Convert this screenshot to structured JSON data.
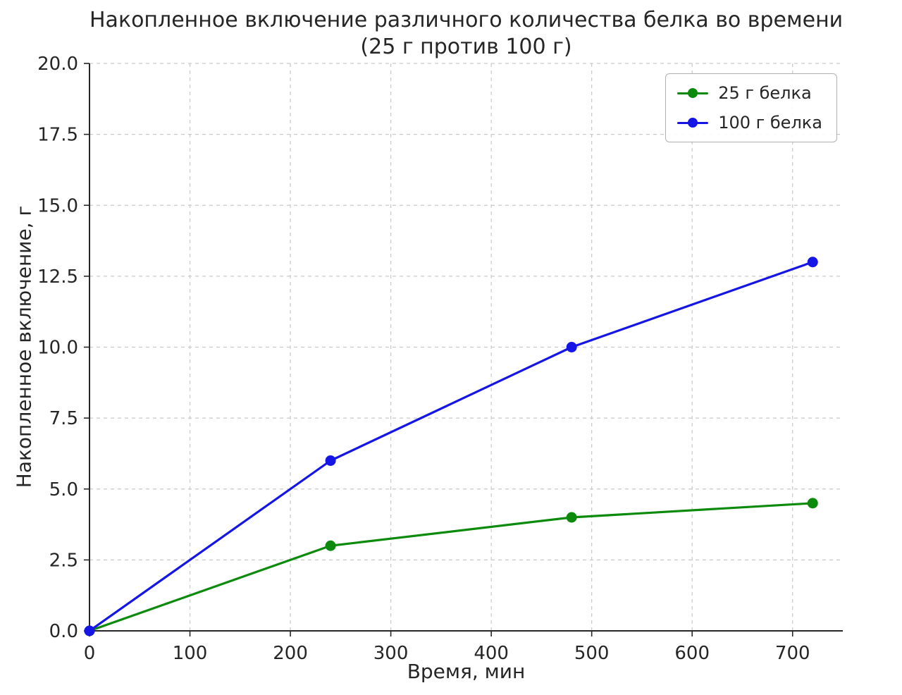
{
  "figure": {
    "title_line1": "Накопленное включение различного количества белка во времени",
    "title_line2": "(25 г против 100 г)"
  },
  "chart_data": {
    "type": "line",
    "title": "Накопленное включение различного количества белка во времени (25 г против 100 г)",
    "xlabel": "Время, мин",
    "ylabel": "Накопленное включение, г",
    "x": [
      0,
      240,
      480,
      720
    ],
    "series": [
      {
        "name": "25 г белка",
        "color": "#0b8a0b",
        "values": [
          0,
          3,
          4,
          4.5
        ]
      },
      {
        "name": "100 г белка",
        "color": "#1515e6",
        "values": [
          0,
          6,
          10,
          13
        ]
      }
    ],
    "xticks": [
      0,
      100,
      200,
      300,
      400,
      500,
      600,
      700
    ],
    "yticks": [
      0,
      2.5,
      5,
      7.5,
      10,
      12.5,
      15,
      17.5,
      20
    ],
    "xlim": [
      0,
      750
    ],
    "ylim": [
      0,
      20
    ],
    "grid": true,
    "legend_position": "upper right",
    "colors": {
      "grid": "#c9c9c9",
      "axis": "#262626",
      "text": "#262626",
      "background": "#ffffff"
    }
  }
}
